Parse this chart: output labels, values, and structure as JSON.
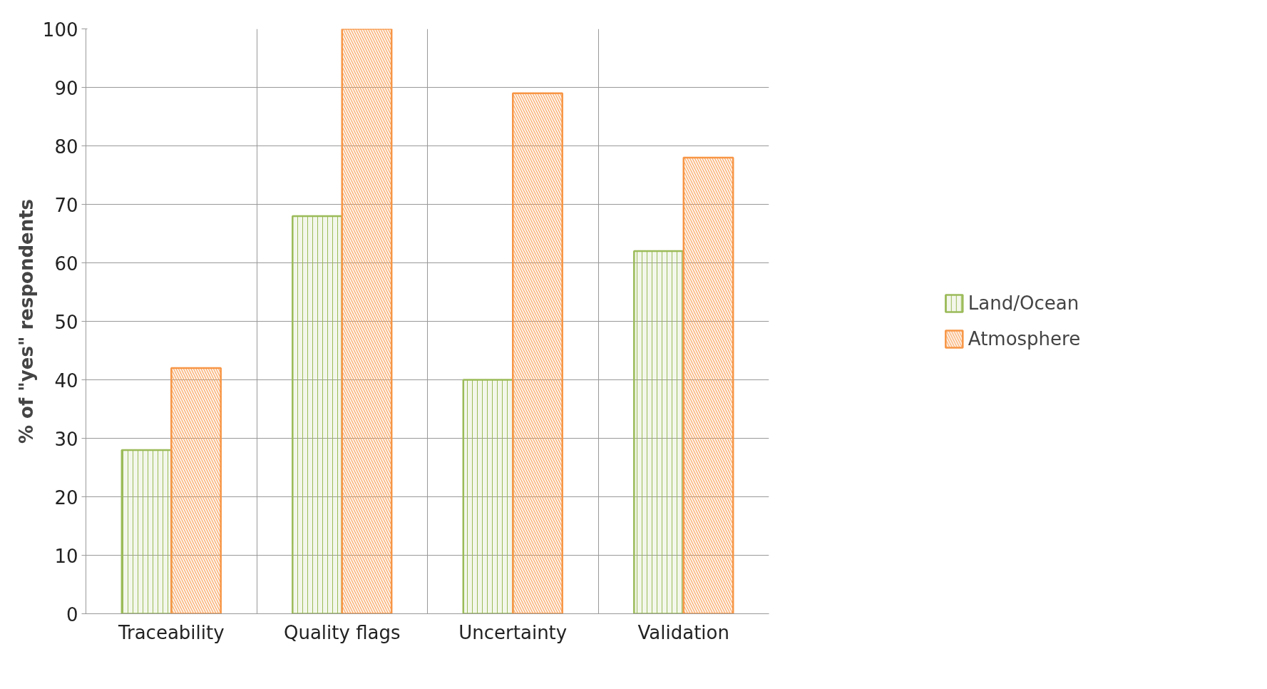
{
  "chart_data": {
    "type": "bar",
    "ylabel": "% of \"yes\" respondents",
    "categories": [
      "Traceability",
      "Quality flags",
      "Uncertainty",
      "Validation"
    ],
    "series": [
      {
        "name": "Land/Ocean",
        "color": "#9bbb59",
        "values": [
          28,
          68,
          40,
          62
        ]
      },
      {
        "name": "Atmosphere",
        "color": "#f79646",
        "values": [
          42,
          100,
          89,
          78
        ]
      }
    ],
    "ylim": [
      0,
      100
    ],
    "yticks": [
      0,
      10,
      20,
      30,
      40,
      50,
      60,
      70,
      80,
      90,
      100
    ],
    "grid": true,
    "legend": "right"
  }
}
